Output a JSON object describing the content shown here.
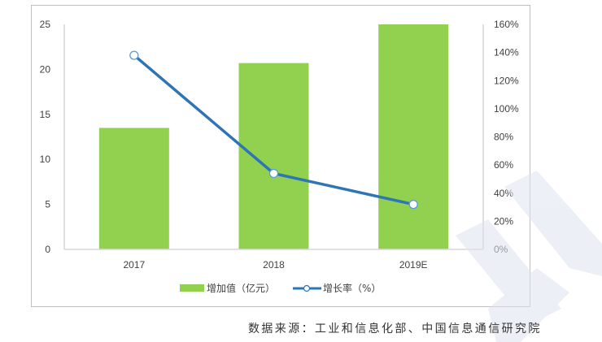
{
  "chart_data": {
    "type": "bar",
    "combo": "bar+line (dual axis)",
    "categories": [
      "2017",
      "2018",
      "2019E"
    ],
    "series": [
      {
        "name": "增加值（亿元）",
        "type": "bar",
        "axis": "left",
        "color": "#92d050",
        "values": [
          13.5,
          20.7,
          25.0
        ]
      },
      {
        "name": "增长率（%）",
        "type": "line",
        "axis": "right",
        "color": "#2e75b6",
        "marker": "hollow-circle",
        "values": [
          138,
          54,
          32
        ]
      }
    ],
    "title": "",
    "xlabel": "",
    "ylabel": "",
    "ylim": [
      0,
      25
    ],
    "y_ticks": [
      "0",
      "5",
      "10",
      "15",
      "20",
      "25"
    ],
    "y2lim": [
      0,
      160
    ],
    "y2_ticks": [
      "0%",
      "20%",
      "40%",
      "60%",
      "80%",
      "100%",
      "120%",
      "140%",
      "160%"
    ],
    "grid": false,
    "legend_position": "bottom"
  },
  "legend": {
    "bar_label": "增加值（亿元）",
    "line_label": "增长率（%）"
  },
  "source_note": "数据来源：工业和信息化部、中国信息通信研究院"
}
